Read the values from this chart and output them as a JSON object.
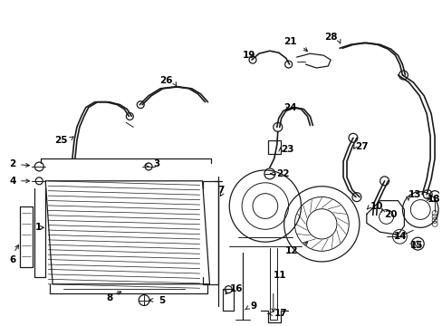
{
  "bg_color": "#ffffff",
  "line_color": "#1a1a1a",
  "figsize": [
    4.89,
    3.6
  ],
  "dpi": 100,
  "lw_pipe": 1.2,
  "lw_thin": 0.7,
  "lw_part": 0.9,
  "fontsize": 7.5
}
